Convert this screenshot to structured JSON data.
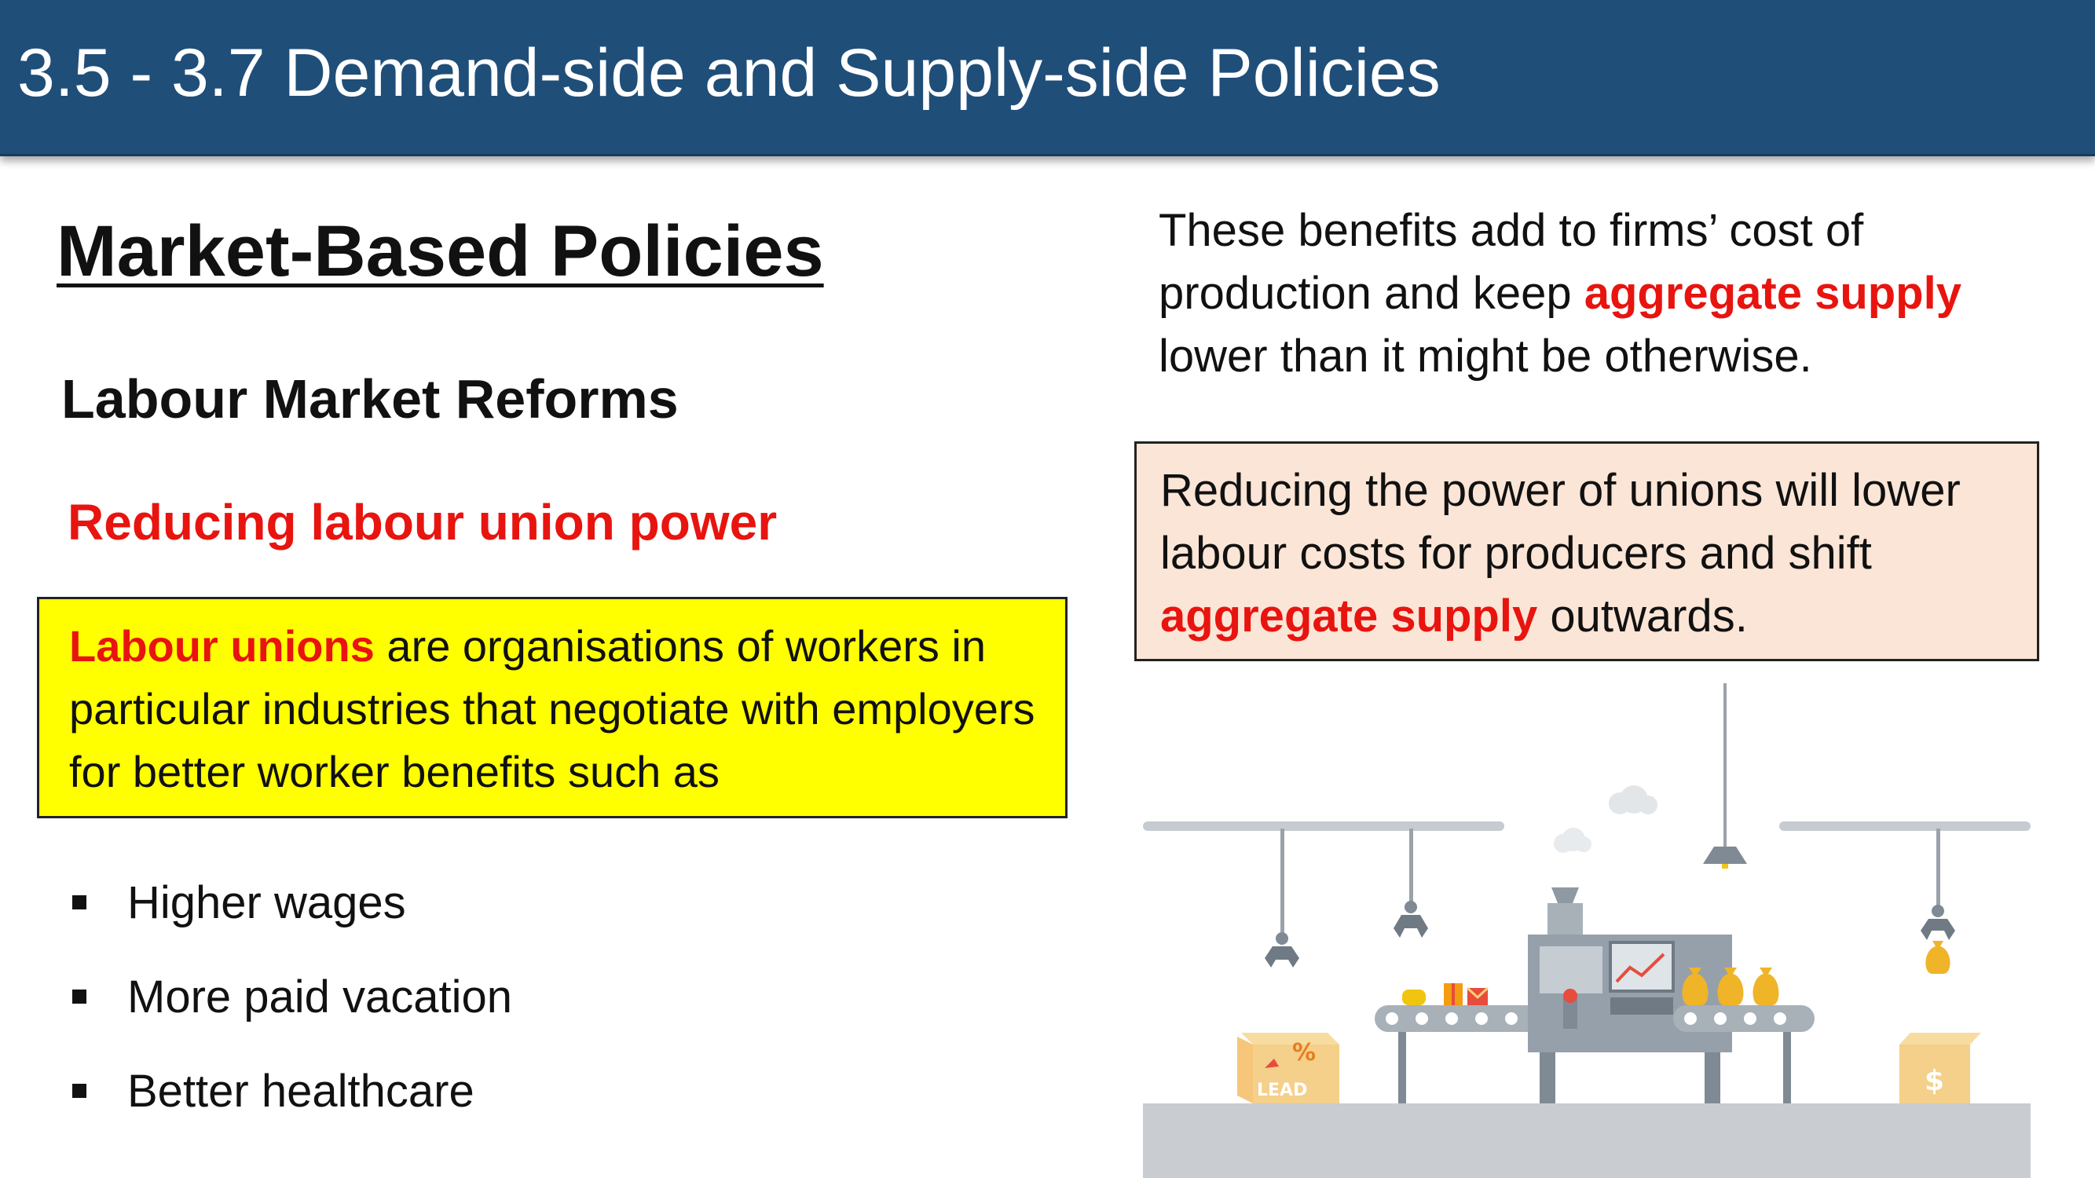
{
  "header": {
    "title": "3.5 - 3.7 Demand-side and Supply-side Policies"
  },
  "left": {
    "section_title": "Market-Based Policies",
    "subtitle": "Labour Market Reforms",
    "red_heading": "Reducing labour union power",
    "definition": {
      "term": "Labour unions",
      "text": " are organisations of workers in particular industries that negotiate with employers for better worker benefits such as"
    },
    "bullets": [
      "Higher wages",
      "More paid vacation",
      "Better healthcare"
    ]
  },
  "right": {
    "para_part1": "These benefits add to firms’ cost of production and keep ",
    "para_highlight": "aggregate supply",
    "para_part2": " lower than it might be otherwise.",
    "box_part1": "Reducing the power of unions will lower labour costs for producers and shift ",
    "box_highlight": "aggregate supply",
    "box_part2": " outwards."
  },
  "illustration": {
    "box_label": "LEAD",
    "percent_sign": "%",
    "currency_sign": "$"
  },
  "colors": {
    "header_bg": "#1f4e79",
    "accent_red": "#e8140f",
    "definition_bg": "#ffff00",
    "callout_bg": "#fbe5d6"
  }
}
